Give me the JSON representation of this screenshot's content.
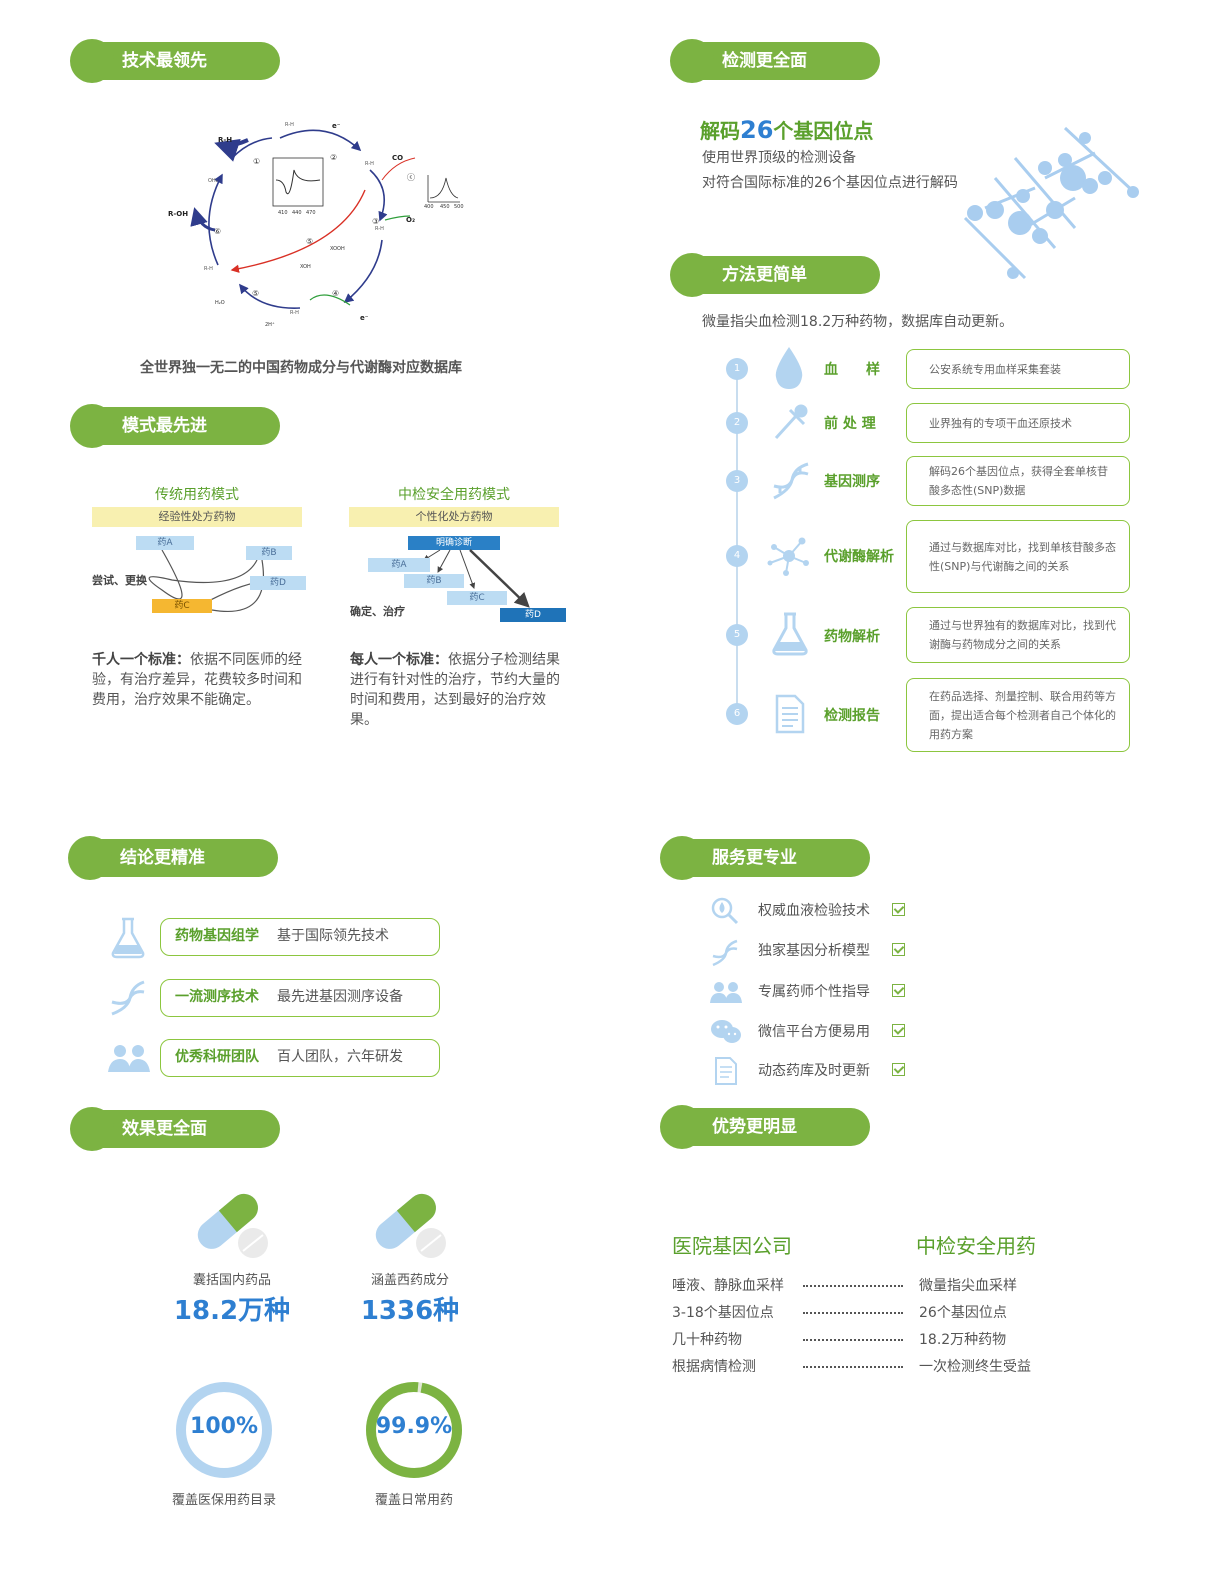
{
  "sections": {
    "tech": "技术最领先",
    "mode": "模式最先进",
    "detect": "检测更全面",
    "method": "方法更简单",
    "conclusion": "结论更精准",
    "effect": "效果更全面",
    "service": "服务更专业",
    "advantage": "优势更明显"
  },
  "tech": {
    "diagram_labels": {
      "rh": "R-H",
      "roh": "R-OH",
      "e1": "e⁻",
      "e2": "e⁻",
      "co": "CO",
      "o2": "O₂",
      "xooh": "XOOH",
      "xoh": "XOH",
      "h2o": "H₂O",
      "twoh": "2H⁺",
      "n1": "①",
      "n2": "②",
      "n3": "③",
      "n4": "④",
      "n5": "⑤",
      "n6": "⑥",
      "nc": "ⓒ",
      "n5b": "⑤",
      "ax1": "410",
      "ax2": "440",
      "ax3": "470",
      "ax4": "400",
      "ax5": "450",
      "ax6": "500"
    },
    "caption": "全世界独一无二的中国药物成分与代谢酶对应数据库"
  },
  "mode": {
    "traditional": {
      "title": "传统用药模式",
      "bar": "经验性处方药物",
      "side_label": "尝试、更换",
      "drugs": [
        "药A",
        "药B",
        "药C",
        "药D"
      ],
      "desc_bold": "千人一个标准：",
      "desc": "依据不同医师的经验，有治疗差异，花费较多时间和费用，治疗效果不能确定。"
    },
    "modern": {
      "title": "中检安全用药模式",
      "bar": "个性化处方药物",
      "diag": "明确诊断",
      "side_label": "确定、治疗",
      "drugs": [
        "药A",
        "药B",
        "药C",
        "药D"
      ],
      "desc_bold": "每人一个标准：",
      "desc": "依据分子检测结果进行有针对性的治疗，节约大量的时间和费用，达到最好的治疗效果。"
    }
  },
  "detect": {
    "title_pre": "解码",
    "title_num": "26",
    "title_post": "个基因位点",
    "line1": "使用世界顶级的检测设备",
    "line2": "对符合国际标准的26个基因位点进行解码"
  },
  "method": {
    "intro": "微量指尖血检测18.2万种药物，数据库自动更新。",
    "steps": [
      {
        "num": "1",
        "label": "血　　样",
        "icon": "blood-drop-icon",
        "desc": "公安系统专用血样采集套装"
      },
      {
        "num": "2",
        "label": "前 处 理",
        "icon": "dropper-icon",
        "desc": "业界独有的专项干血还原技术"
      },
      {
        "num": "3",
        "label": "基因测序",
        "icon": "dna-icon",
        "desc": "解码26个基因位点，获得全套单核苷酸多态性(SNP)数据"
      },
      {
        "num": "4",
        "label": "代谢酶解析",
        "icon": "molecule-icon",
        "desc": "通过与数据库对比，找到单核苷酸多态性(SNP)与代谢酶之间的关系"
      },
      {
        "num": "5",
        "label": "药物解析",
        "icon": "flask-icon",
        "desc": "通过与世界独有的数据库对比，找到代谢酶与药物成分之间的关系"
      },
      {
        "num": "6",
        "label": "检测报告",
        "icon": "report-icon",
        "desc": "在药品选择、剂量控制、联合用药等方面，提出适合每个检测者自己个体化的用药方案"
      }
    ]
  },
  "conclusion": {
    "items": [
      {
        "key": "药物基因组学",
        "val": "基于国际领先技术",
        "icon": "flask-icon"
      },
      {
        "key": "一流测序技术",
        "val": "最先进基因测序设备",
        "icon": "dna-icon"
      },
      {
        "key": "优秀科研团队",
        "val": "百人团队，六年研发",
        "icon": "team-icon"
      }
    ]
  },
  "service": {
    "items": [
      {
        "label": "权威血液检验技术",
        "icon": "blood-test-icon"
      },
      {
        "label": "独家基因分析模型",
        "icon": "dna-icon"
      },
      {
        "label": "专属药师个性指导",
        "icon": "team-icon"
      },
      {
        "label": "微信平台方便易用",
        "icon": "wechat-icon"
      },
      {
        "label": "动态药库及时更新",
        "icon": "report-icon"
      }
    ]
  },
  "effect": {
    "stat1_label": "囊括国内药品",
    "stat1_value": "18.2万种",
    "stat2_label": "涵盖西药成分",
    "stat2_value": "1336种",
    "ring1_value": "100%",
    "ring1_fraction": 1.0,
    "ring1_label": "覆盖医保用药目录",
    "ring2_value": "99.9%",
    "ring2_fraction": 0.999,
    "ring2_label": "覆盖日常用药"
  },
  "advantage": {
    "left_title": "医院基因公司",
    "right_title": "中检安全用药",
    "rows": [
      {
        "left": "唾液、静脉血采样",
        "right": "微量指尖血采样"
      },
      {
        "left": "3-18个基因位点",
        "right": "26个基因位点"
      },
      {
        "left": "几十种药物",
        "right": "18.2万种药物"
      },
      {
        "left": "根据病情检测",
        "right": "一次检测终生受益"
      }
    ]
  },
  "colors": {
    "green": "#7cb342",
    "blue": "#2e7fd1",
    "light_blue": "#b3d4f0"
  }
}
